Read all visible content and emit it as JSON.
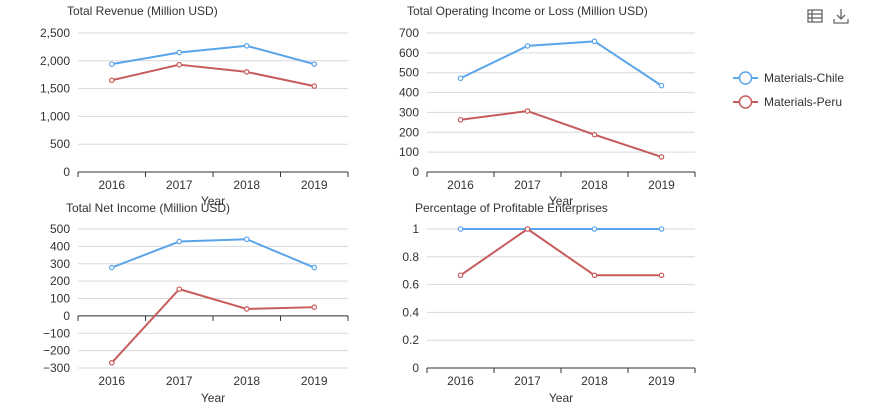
{
  "colors": {
    "chile": "#5aa5e9",
    "peru": "#c75b5b",
    "text": "#333333",
    "grid": "#d9d9d9",
    "axis": "#333333"
  },
  "toolbox": [
    {
      "icon": "data-view-icon"
    },
    {
      "icon": "download-icon"
    }
  ],
  "legend": {
    "placement": "right",
    "items": [
      {
        "label": "Materials-Chile",
        "color": "#5aa5e9"
      },
      {
        "label": "Materials-Peru",
        "color": "#c75b5b"
      }
    ]
  },
  "chart_data": [
    {
      "type": "line",
      "title": "Total Revenue (Million USD)",
      "xlabel": "Year",
      "ylabel": "",
      "categories": [
        "2016",
        "2017",
        "2018",
        "2019"
      ],
      "ylim": [
        0,
        2500
      ],
      "yticks": [
        0,
        500,
        1000,
        1500,
        2000,
        2500
      ],
      "ytick_labels": [
        "0",
        "500",
        "1,000",
        "1,500",
        "2,000",
        "2,500"
      ],
      "grid": true,
      "series": [
        {
          "name": "Materials-Chile",
          "color": "#5aa5e9",
          "values": [
            1940,
            2150,
            2270,
            1940
          ]
        },
        {
          "name": "Materials-Peru",
          "color": "#c75b5b",
          "values": [
            1650,
            1930,
            1800,
            1545
          ]
        }
      ]
    },
    {
      "type": "line",
      "title": "Total Operating Income or Loss (Million USD)",
      "xlabel": "Year",
      "ylabel": "",
      "categories": [
        "2016",
        "2017",
        "2018",
        "2019"
      ],
      "ylim": [
        0,
        700
      ],
      "yticks": [
        0,
        100,
        200,
        300,
        400,
        500,
        600,
        700
      ],
      "ytick_labels": [
        "0",
        "100",
        "200",
        "300",
        "400",
        "500",
        "600",
        "700"
      ],
      "grid": true,
      "series": [
        {
          "name": "Materials-Chile",
          "color": "#5aa5e9",
          "values": [
            472,
            635,
            658,
            435
          ]
        },
        {
          "name": "Materials-Peru",
          "color": "#c75b5b",
          "values": [
            263,
            307,
            188,
            76
          ]
        }
      ]
    },
    {
      "type": "line",
      "title": "Total Net Income (Million USD)",
      "xlabel": "Year",
      "ylabel": "",
      "categories": [
        "2016",
        "2017",
        "2018",
        "2019"
      ],
      "ylim": [
        -300,
        500
      ],
      "yticks": [
        -300,
        -200,
        -100,
        0,
        100,
        200,
        300,
        400,
        500
      ],
      "ytick_labels": [
        "−300",
        "−200",
        "−100",
        "0",
        "100",
        "200",
        "300",
        "400",
        "500"
      ],
      "grid": true,
      "series": [
        {
          "name": "Materials-Chile",
          "color": "#5aa5e9",
          "values": [
            278,
            428,
            441,
            278
          ]
        },
        {
          "name": "Materials-Peru",
          "color": "#c75b5b",
          "values": [
            -270,
            154,
            40,
            50
          ]
        }
      ]
    },
    {
      "type": "line",
      "title": "Percentage of Profitable Enterprises",
      "xlabel": "Year",
      "ylabel": "",
      "categories": [
        "2016",
        "2017",
        "2018",
        "2019"
      ],
      "ylim": [
        0,
        1
      ],
      "yticks": [
        0,
        0.2,
        0.4,
        0.6,
        0.8,
        1
      ],
      "ytick_labels": [
        "0",
        "0.2",
        "0.4",
        "0.6",
        "0.8",
        "1"
      ],
      "grid": true,
      "series": [
        {
          "name": "Materials-Chile",
          "color": "#5aa5e9",
          "values": [
            1,
            1,
            1,
            1
          ]
        },
        {
          "name": "Materials-Peru",
          "color": "#c75b5b",
          "values": [
            0.667,
            1,
            0.667,
            0.667
          ]
        }
      ]
    }
  ]
}
